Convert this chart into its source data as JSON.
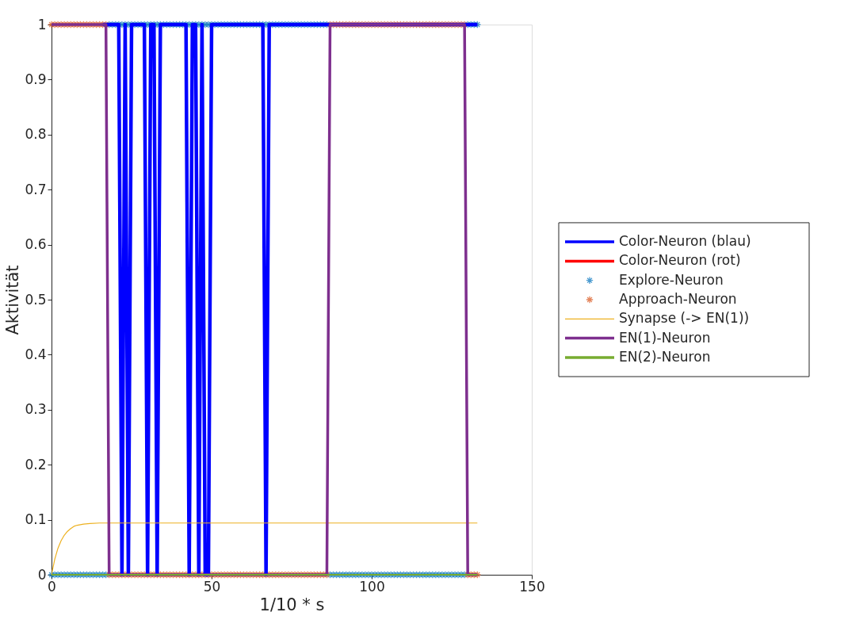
{
  "chart_data": {
    "type": "line",
    "xlabel": "1/10 * s",
    "ylabel": "Aktivität",
    "xlim": [
      0,
      150
    ],
    "xticks": [
      0,
      50,
      100,
      150
    ],
    "ylim": [
      0,
      1
    ],
    "yticks": [
      0,
      0.1,
      0.2,
      0.3,
      0.4,
      0.5,
      0.6,
      0.7,
      0.8,
      0.9,
      1
    ],
    "grid": false,
    "legend": "right",
    "x": [
      0,
      1,
      2,
      3,
      4,
      5,
      6,
      7,
      8,
      9,
      10,
      11,
      12,
      13,
      14,
      15,
      16,
      17,
      18,
      19,
      20,
      21,
      22,
      23,
      24,
      25,
      26,
      27,
      28,
      29,
      30,
      31,
      32,
      33,
      34,
      35,
      36,
      37,
      38,
      39,
      40,
      41,
      42,
      43,
      44,
      45,
      46,
      47,
      48,
      49,
      50,
      51,
      52,
      53,
      54,
      55,
      56,
      57,
      58,
      59,
      60,
      61,
      62,
      63,
      64,
      65,
      66,
      67,
      68,
      69,
      70,
      71,
      72,
      73,
      74,
      75,
      76,
      77,
      78,
      79,
      80,
      81,
      82,
      83,
      84,
      85,
      86,
      87,
      88,
      89,
      90,
      91,
      92,
      93,
      94,
      95,
      96,
      97,
      98,
      99,
      100,
      101,
      102,
      103,
      104,
      105,
      106,
      107,
      108,
      109,
      110,
      111,
      112,
      113,
      114,
      115,
      116,
      117,
      118,
      119,
      120,
      121,
      122,
      123,
      124,
      125,
      126,
      127,
      128,
      129,
      130,
      131,
      132,
      133
    ],
    "series": [
      {
        "name": "Color-Neuron (blau)",
        "color": "#0000ff",
        "values": [
          null,
          null,
          null,
          null,
          null,
          null,
          null,
          null,
          null,
          null,
          null,
          null,
          null,
          null,
          null,
          null,
          1,
          1,
          1,
          1,
          1,
          1,
          0,
          1,
          0,
          1,
          1,
          1,
          1,
          1,
          0,
          1,
          1,
          0,
          1,
          1,
          1,
          1,
          1,
          1,
          1,
          1,
          1,
          0,
          1,
          1,
          0,
          1,
          0,
          0,
          1,
          1,
          1,
          1,
          1,
          1,
          1,
          1,
          1,
          1,
          1,
          1,
          1,
          1,
          1,
          1,
          1,
          0,
          1,
          1,
          1,
          1,
          1,
          1,
          1,
          1,
          1,
          1,
          1,
          1,
          1,
          1,
          1,
          1,
          1,
          1,
          1,
          1,
          1,
          1,
          1,
          1,
          1,
          1,
          1,
          1,
          1,
          1,
          1,
          1,
          1,
          1,
          1,
          1,
          1,
          1,
          1,
          1,
          1,
          1,
          1,
          1,
          1,
          1,
          1,
          1,
          1,
          1,
          1,
          1,
          1,
          1,
          1,
          1,
          1,
          1,
          1,
          1,
          1,
          1,
          1,
          1,
          1,
          1
        ]
      },
      {
        "name": "Color-Neuron (rot)",
        "color": "#ff0000",
        "values": [
          null,
          null,
          null,
          null,
          null,
          null,
          null,
          null,
          null,
          null,
          null,
          null,
          null,
          null,
          null,
          null,
          null,
          null,
          null,
          null,
          null,
          null,
          null,
          null,
          null,
          null,
          null,
          null,
          null,
          null,
          null,
          null,
          null,
          null,
          null,
          null,
          null,
          null,
          null,
          null,
          null,
          null,
          null,
          null,
          null,
          null,
          null,
          null,
          null,
          null,
          null,
          null,
          null,
          null,
          null,
          null,
          null,
          null,
          null,
          null,
          null,
          null,
          null,
          null,
          null,
          null,
          null,
          null,
          null,
          null,
          null,
          null,
          null,
          null,
          null,
          null,
          null,
          null,
          null,
          null,
          null,
          null,
          null,
          null,
          null,
          null,
          null,
          null,
          null,
          null,
          null,
          null,
          null,
          null,
          null,
          null,
          null,
          null,
          null,
          null,
          null,
          null,
          null,
          null,
          null,
          null,
          null,
          null,
          null,
          null,
          null,
          null,
          null,
          null,
          null,
          null,
          null,
          null,
          null,
          null,
          null,
          null,
          null,
          null,
          null,
          null,
          null,
          null,
          null,
          null,
          null,
          null,
          null,
          null
        ]
      },
      {
        "name": "Explore-Neuron",
        "type": "scatter",
        "marker": "cross",
        "color": "#0072bd",
        "values": [
          0,
          0,
          0,
          0,
          0,
          0,
          0,
          0,
          0,
          0,
          0,
          0,
          0,
          0,
          0,
          0,
          0,
          0,
          1,
          1,
          1,
          1,
          1,
          1,
          1,
          1,
          1,
          1,
          1,
          1,
          1,
          1,
          1,
          1,
          1,
          1,
          1,
          1,
          1,
          1,
          1,
          1,
          1,
          1,
          1,
          1,
          1,
          1,
          1,
          1,
          1,
          1,
          1,
          1,
          1,
          1,
          1,
          1,
          1,
          1,
          1,
          1,
          1,
          1,
          1,
          1,
          1,
          1,
          1,
          1,
          1,
          1,
          1,
          1,
          1,
          1,
          1,
          1,
          1,
          1,
          1,
          1,
          1,
          1,
          1,
          1,
          1,
          0,
          0,
          0,
          0,
          0,
          0,
          0,
          0,
          0,
          0,
          0,
          0,
          0,
          0,
          0,
          0,
          0,
          0,
          0,
          0,
          0,
          0,
          0,
          0,
          0,
          0,
          0,
          0,
          0,
          0,
          0,
          0,
          0,
          0,
          0,
          0,
          0,
          0,
          0,
          0,
          0,
          0,
          0,
          1,
          1,
          1,
          1
        ]
      },
      {
        "name": "Approach-Neuron",
        "type": "scatter",
        "marker": "cross",
        "color": "#d95319",
        "values": [
          1,
          1,
          1,
          1,
          1,
          1,
          1,
          1,
          1,
          1,
          1,
          1,
          1,
          1,
          1,
          1,
          1,
          1,
          0,
          0,
          0,
          0,
          0,
          0,
          0,
          0,
          0,
          0,
          0,
          0,
          0,
          0,
          0,
          0,
          0,
          0,
          0,
          0,
          0,
          0,
          0,
          0,
          0,
          0,
          0,
          0,
          0,
          0,
          0,
          0,
          0,
          0,
          0,
          0,
          0,
          0,
          0,
          0,
          0,
          0,
          0,
          0,
          0,
          0,
          0,
          0,
          0,
          0,
          0,
          0,
          0,
          0,
          0,
          0,
          0,
          0,
          0,
          0,
          0,
          0,
          0,
          0,
          0,
          0,
          0,
          0,
          0,
          1,
          1,
          1,
          1,
          1,
          1,
          1,
          1,
          1,
          1,
          1,
          1,
          1,
          1,
          1,
          1,
          1,
          1,
          1,
          1,
          1,
          1,
          1,
          1,
          1,
          1,
          1,
          1,
          1,
          1,
          1,
          1,
          1,
          1,
          1,
          1,
          1,
          1,
          1,
          1,
          1,
          1,
          1,
          0,
          0,
          0,
          0
        ]
      },
      {
        "name": "Synapse (-> EN(1))",
        "color": "#edb120",
        "x": [
          0,
          1,
          2,
          3,
          4,
          5,
          6,
          7,
          8,
          10,
          12,
          15,
          133
        ],
        "values": [
          0,
          0.028,
          0.048,
          0.062,
          0.072,
          0.079,
          0.084,
          0.088,
          0.09,
          0.092,
          0.093,
          0.094,
          0.094
        ]
      },
      {
        "name": "EN(1)-Neuron",
        "color": "#7e2f8e",
        "values": [
          1,
          1,
          1,
          1,
          1,
          1,
          1,
          1,
          1,
          1,
          1,
          1,
          1,
          1,
          1,
          1,
          1,
          1,
          0,
          0,
          0,
          0,
          0,
          0,
          0,
          0,
          0,
          0,
          0,
          0,
          0,
          0,
          0,
          0,
          0,
          0,
          0,
          0,
          0,
          0,
          0,
          0,
          0,
          0,
          0,
          0,
          0,
          0,
          0,
          0,
          0,
          0,
          0,
          0,
          0,
          0,
          0,
          0,
          0,
          0,
          0,
          0,
          0,
          0,
          0,
          0,
          0,
          0,
          0,
          0,
          0,
          0,
          0,
          0,
          0,
          0,
          0,
          0,
          0,
          0,
          0,
          0,
          0,
          0,
          0,
          0,
          0,
          1,
          1,
          1,
          1,
          1,
          1,
          1,
          1,
          1,
          1,
          1,
          1,
          1,
          1,
          1,
          1,
          1,
          1,
          1,
          1,
          1,
          1,
          1,
          1,
          1,
          1,
          1,
          1,
          1,
          1,
          1,
          1,
          1,
          1,
          1,
          1,
          1,
          1,
          1,
          1,
          1,
          1,
          1,
          0,
          0,
          0,
          0
        ]
      },
      {
        "name": "EN(2)-Neuron",
        "color": "#77ac30",
        "values": [
          0,
          0,
          0,
          0,
          0,
          0,
          0,
          0,
          0,
          0,
          0,
          0,
          0,
          0,
          0,
          0,
          0,
          0,
          0,
          0,
          0,
          0,
          0,
          0,
          0,
          0,
          0,
          0,
          0,
          0,
          0,
          0,
          0,
          0,
          0,
          0,
          0,
          0,
          0,
          0,
          0,
          0,
          0,
          0,
          0,
          0,
          0,
          0,
          0,
          0,
          0,
          0,
          0,
          0,
          0,
          0,
          0,
          0,
          0,
          0,
          0,
          0,
          0,
          0,
          0,
          0,
          0,
          0,
          0,
          0,
          0,
          0,
          0,
          0,
          0,
          0,
          0,
          0,
          0,
          0,
          0,
          0,
          0,
          0,
          0,
          0,
          0,
          0,
          0,
          0,
          0,
          0,
          0,
          0,
          0,
          0,
          0,
          0,
          0,
          0,
          0,
          0,
          0,
          0,
          0,
          0,
          0,
          0,
          0,
          0,
          0,
          0,
          0,
          0,
          0,
          0,
          0,
          0,
          0,
          0,
          0,
          0,
          0,
          0,
          0,
          0,
          0,
          0,
          0,
          0,
          0,
          0,
          0,
          0
        ]
      }
    ]
  }
}
